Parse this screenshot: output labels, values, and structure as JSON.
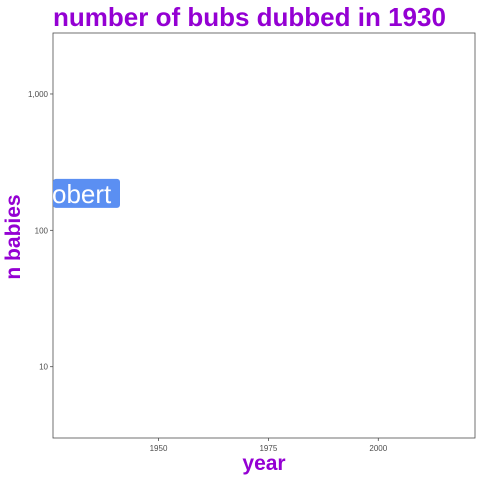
{
  "chart_data": {
    "type": "scatter",
    "title": "number of bubs dubbed in 1930",
    "xlabel": "year",
    "ylabel": "n babies",
    "x_ticks": [
      1950,
      1975,
      2000
    ],
    "y_ticks": [
      10,
      100,
      1000
    ],
    "y_tick_labels": [
      "10",
      "100",
      "1,000"
    ],
    "xlim": [
      1926,
      2022
    ],
    "ylim": [
      3,
      2800
    ],
    "y_scale": "log",
    "grid": false,
    "points": [
      {
        "label": "obert",
        "x": 1930,
        "y": 185
      }
    ],
    "label_fill": "#5b8ff2",
    "title_color": "#9400d3"
  }
}
